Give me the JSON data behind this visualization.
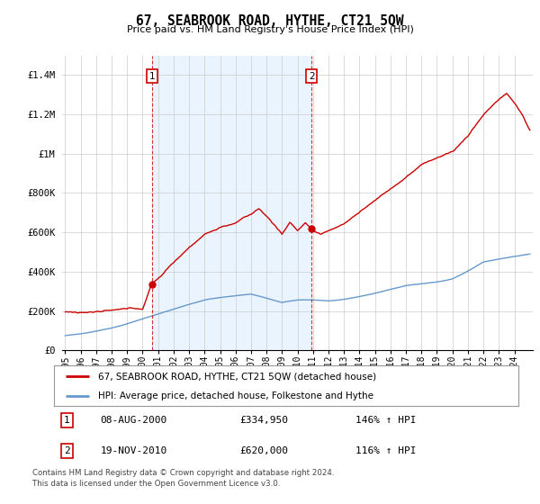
{
  "title": "67, SEABROOK ROAD, HYTHE, CT21 5QW",
  "subtitle": "Price paid vs. HM Land Registry's House Price Index (HPI)",
  "hpi_label": "HPI: Average price, detached house, Folkestone and Hythe",
  "property_label": "67, SEABROOK ROAD, HYTHE, CT21 5QW (detached house)",
  "footnote1": "Contains HM Land Registry data © Crown copyright and database right 2024.",
  "footnote2": "This data is licensed under the Open Government Licence v3.0.",
  "sale1_date": "08-AUG-2000",
  "sale1_price": "£334,950",
  "sale1_hpi": "146% ↑ HPI",
  "sale2_date": "19-NOV-2010",
  "sale2_price": "£620,000",
  "sale2_hpi": "116% ↑ HPI",
  "red_color": "#cc0000",
  "blue_color": "#6699cc",
  "shade_color": "#ddeeff",
  "grid_color": "#cccccc",
  "background_color": "#ffffff",
  "ylim": [
    0,
    1500000
  ],
  "yticks": [
    0,
    200000,
    400000,
    600000,
    800000,
    1000000,
    1200000,
    1400000
  ],
  "ytick_labels": [
    "£0",
    "£200K",
    "£400K",
    "£600K",
    "£800K",
    "£1M",
    "£1.2M",
    "£1.4M"
  ],
  "x_start_year": 1995,
  "x_end_year": 2025,
  "xtick_years": [
    1995,
    1996,
    1997,
    1998,
    1999,
    2000,
    2001,
    2002,
    2003,
    2004,
    2005,
    2006,
    2007,
    2008,
    2009,
    2010,
    2011,
    2012,
    2013,
    2014,
    2015,
    2016,
    2017,
    2018,
    2019,
    2020,
    2021,
    2022,
    2023,
    2024
  ],
  "sale1_x": 2000.6,
  "sale1_y": 334950,
  "sale2_x": 2010.9,
  "sale2_y": 620000,
  "dashed_x1": 2000.6,
  "dashed_x2": 2010.9,
  "hpi_pts": [
    [
      1995,
      75000
    ],
    [
      1996,
      82000
    ],
    [
      1997,
      95000
    ],
    [
      1998,
      112000
    ],
    [
      1999,
      135000
    ],
    [
      2000,
      160000
    ],
    [
      2001,
      185000
    ],
    [
      2002,
      210000
    ],
    [
      2003,
      232000
    ],
    [
      2004,
      255000
    ],
    [
      2005,
      268000
    ],
    [
      2006,
      278000
    ],
    [
      2007,
      285000
    ],
    [
      2008,
      265000
    ],
    [
      2009,
      242000
    ],
    [
      2010,
      255000
    ],
    [
      2011,
      255000
    ],
    [
      2012,
      250000
    ],
    [
      2013,
      258000
    ],
    [
      2014,
      272000
    ],
    [
      2015,
      290000
    ],
    [
      2016,
      310000
    ],
    [
      2017,
      330000
    ],
    [
      2018,
      340000
    ],
    [
      2019,
      350000
    ],
    [
      2020,
      365000
    ],
    [
      2021,
      405000
    ],
    [
      2022,
      450000
    ],
    [
      2023,
      465000
    ],
    [
      2024,
      478000
    ],
    [
      2025,
      490000
    ]
  ],
  "red_pts": [
    [
      1995,
      195000
    ],
    [
      1996,
      195000
    ],
    [
      1997,
      198000
    ],
    [
      1998,
      200000
    ],
    [
      1999,
      202000
    ],
    [
      2000,
      205000
    ],
    [
      2000.6,
      334950
    ],
    [
      2001,
      360000
    ],
    [
      2002,
      440000
    ],
    [
      2003,
      520000
    ],
    [
      2004,
      590000
    ],
    [
      2005,
      625000
    ],
    [
      2006,
      650000
    ],
    [
      2007,
      690000
    ],
    [
      2007.5,
      720000
    ],
    [
      2008,
      680000
    ],
    [
      2008.5,
      640000
    ],
    [
      2009,
      590000
    ],
    [
      2009.5,
      650000
    ],
    [
      2010,
      610000
    ],
    [
      2010.5,
      650000
    ],
    [
      2010.9,
      620000
    ],
    [
      2011,
      610000
    ],
    [
      2011.5,
      590000
    ],
    [
      2012,
      600000
    ],
    [
      2013,
      640000
    ],
    [
      2014,
      700000
    ],
    [
      2015,
      760000
    ],
    [
      2016,
      820000
    ],
    [
      2017,
      880000
    ],
    [
      2018,
      940000
    ],
    [
      2019,
      980000
    ],
    [
      2020,
      1010000
    ],
    [
      2021,
      1090000
    ],
    [
      2022,
      1200000
    ],
    [
      2023,
      1280000
    ],
    [
      2023.5,
      1310000
    ],
    [
      2024,
      1260000
    ],
    [
      2024.5,
      1200000
    ],
    [
      2025,
      1120000
    ]
  ]
}
